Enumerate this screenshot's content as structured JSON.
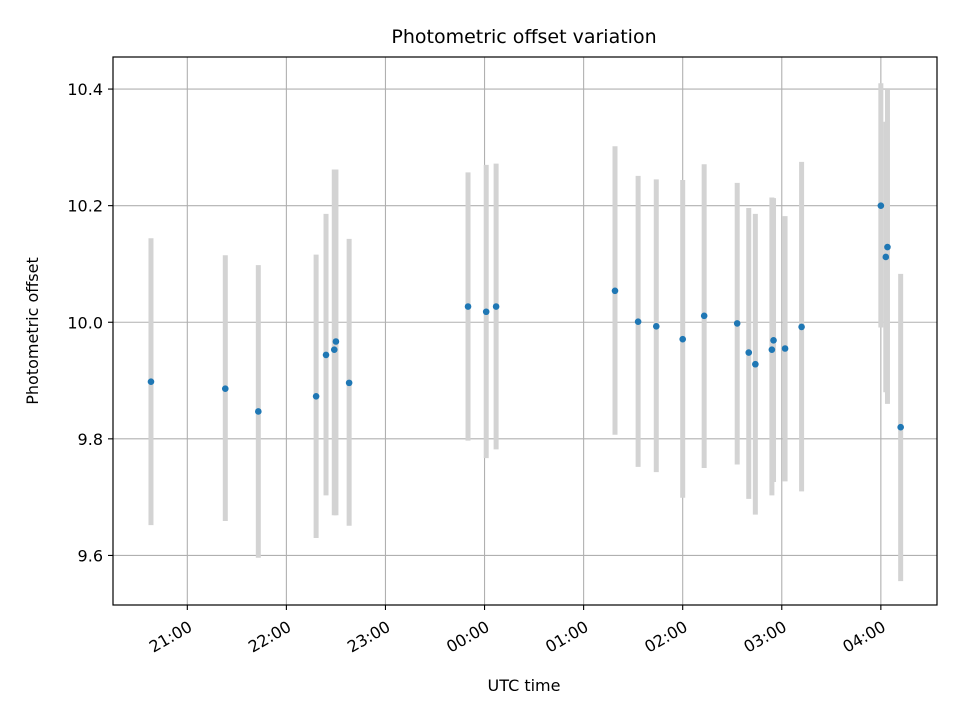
{
  "chart_data": {
    "type": "scatter",
    "title": "Photometric offset variation",
    "xlabel": "UTC time",
    "ylabel": "Photometric offset",
    "ylim": [
      9.515,
      10.455
    ],
    "xlim": [
      "20:15",
      "04:34"
    ],
    "x_axis_type": "time",
    "grid": true,
    "y_ticks": [
      {
        "value": 9.6,
        "label": "9.6"
      },
      {
        "value": 9.8,
        "label": "9.8"
      },
      {
        "value": 10.0,
        "label": "10.0"
      },
      {
        "value": 10.2,
        "label": "10.2"
      },
      {
        "value": 10.4,
        "label": "10.4"
      }
    ],
    "x_ticks": [
      {
        "value": "21:00",
        "label": "21:00"
      },
      {
        "value": "22:00",
        "label": "22:00"
      },
      {
        "value": "23:00",
        "label": "23:00"
      },
      {
        "value": "00:00",
        "label": "00:00"
      },
      {
        "value": "01:00",
        "label": "01:00"
      },
      {
        "value": "02:00",
        "label": "02:00"
      },
      {
        "value": "03:00",
        "label": "03:00"
      },
      {
        "value": "04:00",
        "label": "04:00"
      }
    ],
    "series": [
      {
        "marker_color": "#1f77b4",
        "errorbar_color": "#d3d3d3",
        "points": [
          {
            "x": "20:38",
            "y": 9.898,
            "ylow": 9.652,
            "yhigh": 10.144
          },
          {
            "x": "21:23",
            "y": 9.886,
            "ylow": 9.659,
            "yhigh": 10.115
          },
          {
            "x": "21:43",
            "y": 9.847,
            "ylow": 9.596,
            "yhigh": 10.098
          },
          {
            "x": "22:18",
            "y": 9.873,
            "ylow": 9.63,
            "yhigh": 10.116
          },
          {
            "x": "22:24",
            "y": 9.944,
            "ylow": 9.703,
            "yhigh": 10.186
          },
          {
            "x": "22:29",
            "y": 9.953,
            "ylow": 9.669,
            "yhigh": 10.262
          },
          {
            "x": "22:30",
            "y": 9.967,
            "ylow": 9.669,
            "yhigh": 10.262
          },
          {
            "x": "22:38",
            "y": 9.896,
            "ylow": 9.651,
            "yhigh": 10.143
          },
          {
            "x": "23:50",
            "y": 10.027,
            "ylow": 9.797,
            "yhigh": 10.257
          },
          {
            "x": "00:01",
            "y": 10.018,
            "ylow": 9.767,
            "yhigh": 10.27
          },
          {
            "x": "00:07",
            "y": 10.027,
            "ylow": 9.782,
            "yhigh": 10.272
          },
          {
            "x": "01:19",
            "y": 10.054,
            "ylow": 9.807,
            "yhigh": 10.302
          },
          {
            "x": "01:33",
            "y": 10.001,
            "ylow": 9.752,
            "yhigh": 10.251
          },
          {
            "x": "01:44",
            "y": 9.993,
            "ylow": 9.743,
            "yhigh": 10.245
          },
          {
            "x": "02:00",
            "y": 9.971,
            "ylow": 9.699,
            "yhigh": 10.244
          },
          {
            "x": "02:13",
            "y": 10.011,
            "ylow": 9.75,
            "yhigh": 10.271
          },
          {
            "x": "02:33",
            "y": 9.998,
            "ylow": 9.756,
            "yhigh": 10.239
          },
          {
            "x": "02:40",
            "y": 9.948,
            "ylow": 9.697,
            "yhigh": 10.196
          },
          {
            "x": "02:44",
            "y": 9.928,
            "ylow": 9.67,
            "yhigh": 10.186
          },
          {
            "x": "02:54",
            "y": 9.953,
            "ylow": 9.703,
            "yhigh": 10.214
          },
          {
            "x": "02:55",
            "y": 9.969,
            "ylow": 9.726,
            "yhigh": 10.213
          },
          {
            "x": "03:02",
            "y": 9.955,
            "ylow": 9.727,
            "yhigh": 10.182
          },
          {
            "x": "03:12",
            "y": 9.992,
            "ylow": 9.71,
            "yhigh": 10.275
          },
          {
            "x": "04:00",
            "y": 10.2,
            "ylow": 9.991,
            "yhigh": 10.41
          },
          {
            "x": "04:03",
            "y": 10.112,
            "ylow": 9.88,
            "yhigh": 10.344
          },
          {
            "x": "04:04",
            "y": 10.129,
            "ylow": 9.86,
            "yhigh": 10.4
          },
          {
            "x": "04:12",
            "y": 9.82,
            "ylow": 9.556,
            "yhigh": 10.083
          }
        ]
      }
    ]
  }
}
